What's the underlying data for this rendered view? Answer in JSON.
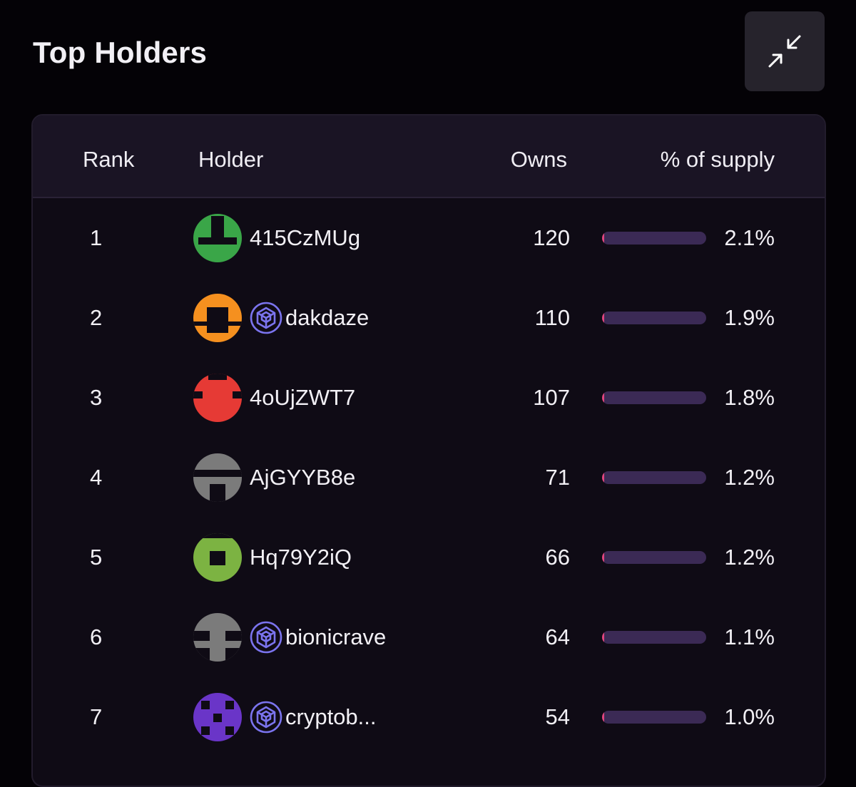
{
  "title": "Top Holders",
  "header": {
    "rank": "Rank",
    "holder": "Holder",
    "owns": "Owns",
    "supply": "% of supply"
  },
  "colors": {
    "bar_track": "#3b2a55",
    "bar_fill": "#e0457e",
    "verified_icon": "#7b74ee"
  },
  "rows": [
    {
      "rank": "1",
      "name": "415CzMUg",
      "owns": "120",
      "pct": "2.1%",
      "supply_fraction": 0.021,
      "verified": false,
      "avatar_color": "#3aa648"
    },
    {
      "rank": "2",
      "name": "dakdaze",
      "owns": "110",
      "pct": "1.9%",
      "supply_fraction": 0.019,
      "verified": true,
      "avatar_color": "#f5901f"
    },
    {
      "rank": "3",
      "name": "4oUjZWT7",
      "owns": "107",
      "pct": "1.8%",
      "supply_fraction": 0.018,
      "verified": false,
      "avatar_color": "#e63a35"
    },
    {
      "rank": "4",
      "name": "AjGYYB8e",
      "owns": "71",
      "pct": "1.2%",
      "supply_fraction": 0.012,
      "verified": false,
      "avatar_color": "#7b7b7b"
    },
    {
      "rank": "5",
      "name": "Hq79Y2iQ",
      "owns": "66",
      "pct": "1.2%",
      "supply_fraction": 0.012,
      "verified": false,
      "avatar_color": "#7cb342"
    },
    {
      "rank": "6",
      "name": "bionicrave",
      "owns": "64",
      "pct": "1.1%",
      "supply_fraction": 0.011,
      "verified": true,
      "avatar_color": "#7b7b7b"
    },
    {
      "rank": "7",
      "name": "cryptob...",
      "owns": "54",
      "pct": "1.0%",
      "supply_fraction": 0.01,
      "verified": true,
      "avatar_color": "#6a35c8"
    }
  ]
}
